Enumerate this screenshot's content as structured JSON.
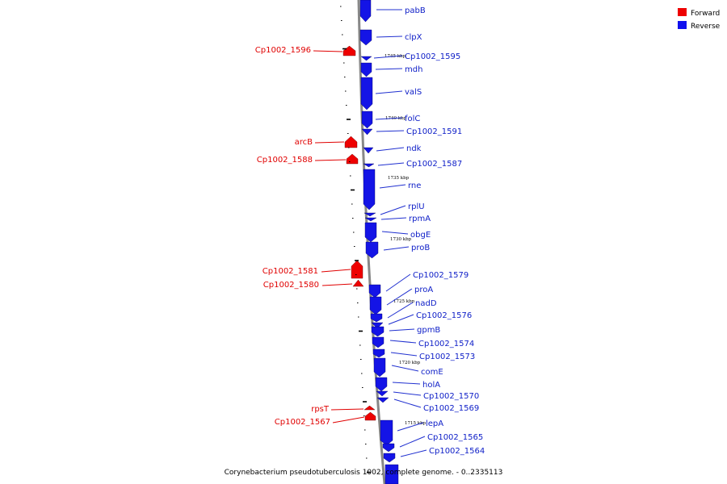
{
  "caption": "Corynebacterium pseudotuberculosis 1002, complete genome. - 0..2335113",
  "legend": [
    {
      "label": "Forward",
      "color": "#ee0000"
    },
    {
      "label": "Reverse",
      "color": "#1010ee"
    }
  ],
  "position_labels": [
    "1745 kbp",
    "1740 kbp",
    "1735 kbp",
    "1730 kbp",
    "1725 kbp",
    "1720 kbp",
    "1715 kbp"
  ],
  "forward_genes": [
    "Cp1002_1596",
    "arcB",
    "Cp1002_1588",
    "Cp1002_1581",
    "Cp1002_1580",
    "rpsT",
    "Cp1002_1567"
  ],
  "reverse_genes": [
    "pabB",
    "clpX",
    "Cp1002_1595",
    "mdh",
    "valS",
    "folC",
    "Cp1002_1591",
    "ndk",
    "Cp1002_1587",
    "rne",
    "rplU",
    "rpmA",
    "obgE",
    "proB",
    "Cp1002_1579",
    "proA",
    "nadD",
    "Cp1002_1576",
    "gpmB",
    "Cp1002_1574",
    "Cp1002_1573",
    "comE",
    "holA",
    "Cp1002_1570",
    "Cp1002_1569",
    "lepA",
    "Cp1002_1565",
    "Cp1002_1564"
  ]
}
